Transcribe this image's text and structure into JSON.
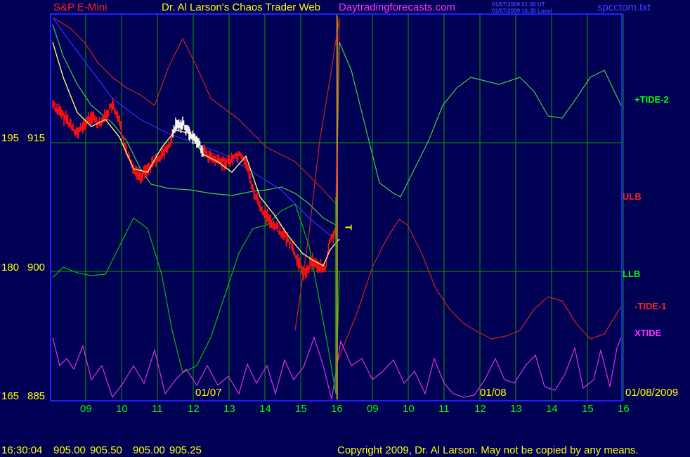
{
  "header": {
    "symbol": "S&P E-Mini",
    "title": "Dr. Al Larson's Chaos Trader Web",
    "site": "Daytradingforecasts.com",
    "timestamp_ut": "01/07/2009 21:30 UT",
    "timestamp_local": "01/07/2009 16:30 Local",
    "file": "spcctom.txt"
  },
  "status": {
    "time": "16:30:04",
    "open": "905.00",
    "high": "905.50",
    "low": "905.00",
    "close": "905.25",
    "copyright": "Copyright 2009, Dr. Al Larson. May not be copied by any means."
  },
  "colors": {
    "background": "#000055",
    "grid": "#00a000",
    "axis": "#2020ff",
    "price_bars": "#ff1010",
    "price_bars_highlight": "#ffffff",
    "yellow": "#ffff00",
    "magenta": "#ff00ff",
    "red_label": "#ff2020",
    "green_label": "#00ff00",
    "blue_label": "#4040ff"
  },
  "chart_data": {
    "type": "line",
    "x": [
      "09",
      "10",
      "11",
      "12",
      "13",
      "14",
      "15",
      "16",
      "09",
      "10",
      "11",
      "12",
      "13",
      "14",
      "15",
      "16"
    ],
    "date_labels": [
      "01/07",
      "01/08",
      "01/08/2009"
    ],
    "y_left_labels": [
      "195",
      "180",
      "165"
    ],
    "y_price_labels": [
      "915",
      "900",
      "885"
    ],
    "ylim": [
      885,
      915
    ],
    "series_labels": [
      "+TIDE-2",
      "ULB",
      "LLB",
      "-TIDE-1",
      "XTIDE"
    ],
    "marker": "T",
    "series": [
      {
        "name": "+TIDE-2",
        "color": "#40d040",
        "points": [
          [
            75,
            35
          ],
          [
            90,
            80
          ],
          [
            110,
            120
          ],
          [
            130,
            150
          ],
          [
            160,
            175
          ],
          [
            180,
            200
          ],
          [
            200,
            240
          ],
          [
            215,
            262
          ],
          [
            240,
            268
          ],
          [
            270,
            270
          ],
          [
            300,
            275
          ],
          [
            330,
            278
          ],
          [
            360,
            272
          ],
          [
            380,
            270
          ],
          [
            400,
            266
          ],
          [
            420,
            275
          ],
          [
            440,
            290
          ],
          [
            460,
            310
          ],
          [
            478,
            320
          ],
          [
            483,
            60
          ],
          [
            500,
            100
          ],
          [
            520,
            180
          ],
          [
            540,
            260
          ],
          [
            560,
            275
          ],
          [
            570,
            280
          ],
          [
            590,
            240
          ],
          [
            610,
            200
          ],
          [
            630,
            150
          ],
          [
            650,
            125
          ],
          [
            670,
            110
          ],
          [
            690,
            115
          ],
          [
            710,
            120
          ],
          [
            740,
            110
          ],
          [
            760,
            130
          ],
          [
            780,
            165
          ],
          [
            800,
            168
          ],
          [
            820,
            140
          ],
          [
            840,
            110
          ],
          [
            860,
            100
          ],
          [
            884,
            150
          ]
        ]
      },
      {
        "name": "ULB",
        "color": "#d02020",
        "points": [
          [
            75,
            25
          ],
          [
            100,
            40
          ],
          [
            120,
            60
          ],
          [
            140,
            90
          ],
          [
            160,
            110
          ],
          [
            180,
            125
          ],
          [
            200,
            135
          ],
          [
            220,
            150
          ],
          [
            240,
            95
          ],
          [
            260,
            55
          ],
          [
            280,
            95
          ],
          [
            300,
            140
          ],
          [
            320,
            155
          ],
          [
            340,
            170
          ],
          [
            360,
            190
          ],
          [
            380,
            210
          ],
          [
            400,
            220
          ],
          [
            420,
            230
          ],
          [
            440,
            250
          ],
          [
            460,
            270
          ],
          [
            478,
            290
          ],
          [
            483,
            25
          ]
        ]
      },
      {
        "name": "ULB-fc",
        "color": "#d02020",
        "points": [
          [
            483,
            25
          ],
          [
            470,
            110
          ],
          [
            455,
            200
          ],
          [
            440,
            330
          ],
          [
            430,
            400
          ],
          [
            420,
            470
          ]
        ]
      },
      {
        "name": "LLB",
        "color": "#00c000",
        "points": [
          [
            75,
            395
          ],
          [
            90,
            380
          ],
          [
            110,
            388
          ],
          [
            130,
            392
          ],
          [
            150,
            390
          ],
          [
            170,
            350
          ],
          [
            190,
            310
          ],
          [
            210,
            325
          ],
          [
            230,
            390
          ],
          [
            245,
            470
          ],
          [
            260,
            530
          ],
          [
            280,
            520
          ],
          [
            300,
            480
          ],
          [
            320,
            420
          ],
          [
            340,
            360
          ],
          [
            360,
            325
          ],
          [
            380,
            320
          ],
          [
            400,
            300
          ],
          [
            420,
            290
          ],
          [
            440,
            350
          ],
          [
            455,
            430
          ],
          [
            468,
            500
          ],
          [
            478,
            560
          ],
          [
            483,
            385
          ]
        ]
      },
      {
        "name": "-TIDE-1",
        "color": "#d02020",
        "points": [
          [
            478,
            520
          ],
          [
            490,
            490
          ],
          [
            510,
            440
          ],
          [
            530,
            380
          ],
          [
            550,
            340
          ],
          [
            568,
            312
          ],
          [
            580,
            320
          ],
          [
            600,
            360
          ],
          [
            620,
            410
          ],
          [
            640,
            440
          ],
          [
            660,
            460
          ],
          [
            680,
            472
          ],
          [
            700,
            482
          ],
          [
            720,
            478
          ],
          [
            740,
            470
          ],
          [
            760,
            440
          ],
          [
            780,
            422
          ],
          [
            800,
            428
          ],
          [
            820,
            460
          ],
          [
            840,
            482
          ],
          [
            860,
            475
          ],
          [
            884,
            436
          ]
        ]
      },
      {
        "name": "XTIDE",
        "color": "#e030e0",
        "points": [
          [
            75,
            480
          ],
          [
            85,
            520
          ],
          [
            95,
            510
          ],
          [
            105,
            525
          ],
          [
            118,
            492
          ],
          [
            130,
            540
          ],
          [
            145,
            520
          ],
          [
            160,
            565
          ],
          [
            175,
            545
          ],
          [
            190,
            520
          ],
          [
            205,
            545
          ],
          [
            220,
            498
          ],
          [
            235,
            560
          ],
          [
            250,
            540
          ],
          [
            265,
            525
          ],
          [
            280,
            548
          ],
          [
            295,
            520
          ],
          [
            310,
            548
          ],
          [
            325,
            535
          ],
          [
            340,
            560
          ],
          [
            352,
            518
          ],
          [
            365,
            545
          ],
          [
            380,
            520
          ],
          [
            392,
            560
          ],
          [
            405,
            512
          ],
          [
            418,
            540
          ],
          [
            432,
            522
          ],
          [
            447,
            480
          ],
          [
            460,
            520
          ],
          [
            472,
            568
          ],
          [
            485,
            485
          ],
          [
            500,
            520
          ],
          [
            515,
            510
          ],
          [
            530,
            540
          ],
          [
            545,
            528
          ],
          [
            560,
            512
          ],
          [
            575,
            545
          ],
          [
            590,
            528
          ],
          [
            605,
            560
          ],
          [
            618,
            510
          ],
          [
            632,
            545
          ],
          [
            645,
            560
          ],
          [
            660,
            565
          ],
          [
            675,
            562
          ],
          [
            690,
            540
          ],
          [
            705,
            510
          ],
          [
            718,
            540
          ],
          [
            732,
            545
          ],
          [
            748,
            520
          ],
          [
            762,
            505
          ],
          [
            775,
            550
          ],
          [
            790,
            555
          ],
          [
            805,
            530
          ],
          [
            818,
            495
          ],
          [
            830,
            552
          ],
          [
            845,
            540
          ],
          [
            855,
            498
          ],
          [
            868,
            550
          ],
          [
            878,
            495
          ],
          [
            884,
            480
          ]
        ]
      },
      {
        "name": "blue-trend",
        "color": "#3030ff",
        "points": [
          [
            75,
            25
          ],
          [
            100,
            60
          ],
          [
            130,
            100
          ],
          [
            160,
            140
          ],
          [
            200,
            170
          ],
          [
            240,
            190
          ],
          [
            280,
            205
          ],
          [
            320,
            220
          ],
          [
            360,
            245
          ],
          [
            400,
            270
          ],
          [
            440,
            310
          ],
          [
            470,
            335
          ],
          [
            483,
            342
          ]
        ]
      },
      {
        "name": "yellow-avg",
        "color": "#ffff00",
        "points": [
          [
            75,
            60
          ],
          [
            90,
            110
          ],
          [
            110,
            160
          ],
          [
            130,
            180
          ],
          [
            150,
            170
          ],
          [
            170,
            195
          ],
          [
            190,
            240
          ],
          [
            210,
            245
          ],
          [
            230,
            210
          ],
          [
            250,
            185
          ],
          [
            270,
            190
          ],
          [
            290,
            220
          ],
          [
            310,
            230
          ],
          [
            330,
            245
          ],
          [
            350,
            222
          ],
          [
            370,
            280
          ],
          [
            390,
            305
          ],
          [
            410,
            335
          ],
          [
            430,
            360
          ],
          [
            445,
            370
          ],
          [
            460,
            378
          ],
          [
            470,
            355
          ],
          [
            483,
            340
          ]
        ]
      },
      {
        "name": "price",
        "color": "#ff1010",
        "points": [
          [
            75,
            148
          ],
          [
            85,
            160
          ],
          [
            95,
            170
          ],
          [
            110,
            190
          ],
          [
            120,
            178
          ],
          [
            130,
            165
          ],
          [
            140,
            175
          ],
          [
            150,
            165
          ],
          [
            160,
            150
          ],
          [
            170,
            175
          ],
          [
            180,
            215
          ],
          [
            190,
            240
          ],
          [
            200,
            250
          ],
          [
            210,
            240
          ],
          [
            225,
            225
          ],
          [
            240,
            210
          ],
          [
            250,
            180
          ],
          [
            260,
            175
          ],
          [
            270,
            190
          ],
          [
            280,
            200
          ],
          [
            290,
            215
          ],
          [
            300,
            225
          ],
          [
            310,
            230
          ],
          [
            325,
            230
          ],
          [
            340,
            220
          ],
          [
            350,
            230
          ],
          [
            360,
            270
          ],
          [
            370,
            295
          ],
          [
            385,
            315
          ],
          [
            400,
            330
          ],
          [
            415,
            350
          ],
          [
            425,
            375
          ],
          [
            435,
            390
          ],
          [
            445,
            370
          ],
          [
            455,
            380
          ],
          [
            463,
            385
          ],
          [
            470,
            340
          ],
          [
            480,
            325
          ]
        ]
      }
    ]
  }
}
